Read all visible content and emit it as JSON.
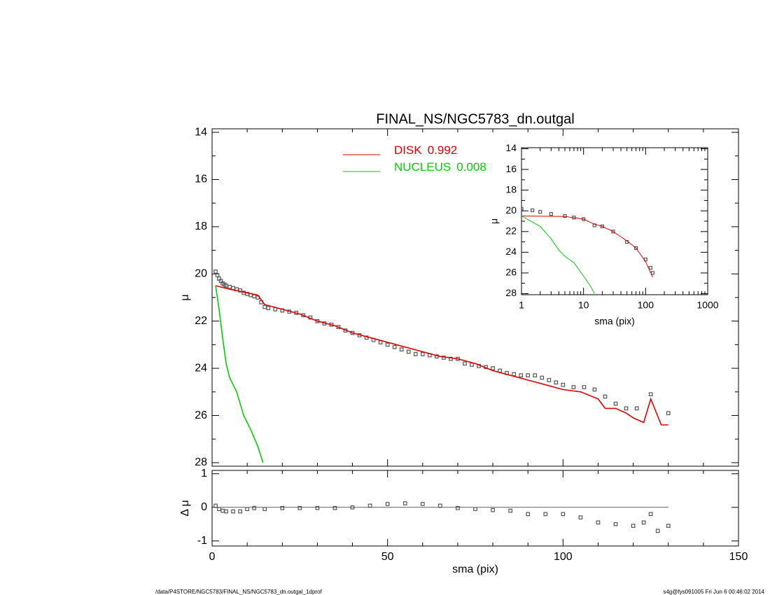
{
  "chart_data": [
    {
      "type": "line",
      "title": "FINAL_NS/NGC5783_dn.outgal",
      "ylabel": "μ",
      "xlim": [
        0,
        150
      ],
      "xticks": [
        0,
        50,
        100,
        150
      ],
      "xminor": 5,
      "xtick_labels": false,
      "ylim": [
        28.15,
        13.85
      ],
      "yticks": [
        14,
        16,
        18,
        20,
        22,
        24,
        26,
        28
      ],
      "yminor": 2,
      "series": [
        {
          "style": "points",
          "color": "#555555",
          "x": [
            1,
            1.5,
            2,
            2.5,
            3,
            3.5,
            4,
            5,
            6,
            7,
            8,
            9,
            10,
            11,
            12,
            13,
            14,
            15,
            16,
            18,
            20,
            22,
            24,
            26,
            28,
            30,
            32,
            34,
            36,
            38,
            40,
            42,
            44,
            46,
            48,
            50,
            52,
            54,
            56,
            58,
            60,
            62,
            64,
            66,
            68,
            70,
            72,
            74,
            76,
            78,
            80,
            82,
            84,
            86,
            88,
            90,
            92,
            94,
            96,
            98,
            100,
            103,
            106,
            109,
            112,
            115,
            118,
            121,
            125,
            130
          ],
          "values": [
            19.9,
            20.05,
            20.2,
            20.3,
            20.4,
            20.45,
            20.5,
            20.55,
            20.6,
            20.65,
            20.7,
            20.8,
            20.85,
            20.9,
            20.95,
            21.0,
            21.2,
            21.4,
            21.45,
            21.5,
            21.55,
            21.6,
            21.65,
            21.75,
            21.85,
            22.0,
            22.1,
            22.15,
            22.25,
            22.4,
            22.5,
            22.6,
            22.7,
            22.8,
            22.9,
            23.0,
            23.1,
            23.2,
            23.3,
            23.4,
            23.4,
            23.45,
            23.5,
            23.55,
            23.6,
            23.6,
            23.8,
            23.85,
            23.9,
            23.95,
            24.0,
            24.1,
            24.2,
            24.25,
            24.3,
            24.3,
            24.3,
            24.4,
            24.5,
            24.6,
            24.7,
            24.8,
            24.8,
            24.9,
            25.2,
            25.5,
            25.7,
            25.7,
            25.1,
            25.9
          ]
        },
        {
          "name": "DISK",
          "fraction": 0.992,
          "style": "line",
          "color": "#e00000",
          "x": [
            1,
            5,
            10,
            13,
            15,
            20,
            25,
            30,
            35,
            40,
            45,
            50,
            55,
            60,
            65,
            70,
            75,
            80,
            85,
            90,
            95,
            100,
            105,
            110,
            112,
            115,
            118,
            120,
            123,
            125,
            128,
            130
          ],
          "values": [
            20.5,
            20.65,
            20.8,
            20.9,
            21.3,
            21.5,
            21.7,
            22.0,
            22.2,
            22.5,
            22.7,
            22.9,
            23.1,
            23.3,
            23.5,
            23.6,
            23.8,
            24.1,
            24.3,
            24.5,
            24.7,
            24.9,
            25.0,
            25.3,
            25.7,
            25.7,
            25.9,
            26.1,
            26.3,
            25.3,
            26.4,
            26.4
          ]
        },
        {
          "name": "NUCLEUS",
          "fraction": 0.008,
          "style": "line",
          "color": "#00d000",
          "x": [
            1,
            2,
            3,
            4,
            5,
            7,
            8,
            9,
            11,
            13,
            14.5
          ],
          "values": [
            20.5,
            21.5,
            22.7,
            23.8,
            24.4,
            25.0,
            25.5,
            26.0,
            26.6,
            27.3,
            28.0
          ]
        }
      ]
    },
    {
      "type": "scatter",
      "xlabel": "sma (pix)",
      "ylabel": "Δ μ",
      "reference_y": 0,
      "xlim": [
        0,
        150
      ],
      "xticks": [
        0,
        50,
        100,
        150
      ],
      "xminor": 5,
      "ylim": [
        -1.15,
        1.1
      ],
      "yticks": [
        1,
        0,
        -1
      ],
      "yminor": 1,
      "series": [
        {
          "style": "points",
          "color": "#555555",
          "x": [
            1,
            2,
            3,
            4,
            6,
            8,
            10,
            12,
            15,
            20,
            25,
            30,
            35,
            40,
            45,
            50,
            55,
            60,
            65,
            70,
            75,
            80,
            85,
            90,
            95,
            100,
            105,
            110,
            115,
            120,
            123,
            125,
            127,
            130
          ],
          "values": [
            0.05,
            -0.05,
            -0.1,
            -0.12,
            -0.12,
            -0.12,
            -0.05,
            -0.02,
            -0.05,
            -0.02,
            -0.02,
            -0.02,
            -0.02,
            0.0,
            0.05,
            0.1,
            0.12,
            0.1,
            0.05,
            -0.02,
            -0.05,
            -0.08,
            -0.1,
            -0.2,
            -0.2,
            -0.2,
            -0.3,
            -0.45,
            -0.5,
            -0.55,
            -0.45,
            -0.2,
            -0.7,
            -0.55
          ]
        }
      ]
    },
    {
      "type": "line",
      "xlabel": "sma (pix)",
      "ylabel": "μ",
      "xlog": true,
      "xlim": [
        1,
        1000
      ],
      "xticks": [
        1,
        10,
        100,
        1000
      ],
      "ylim": [
        28.1,
        13.9
      ],
      "yticks": [
        14,
        16,
        18,
        20,
        22,
        24,
        26,
        28
      ],
      "yminor": 2,
      "series": [
        {
          "style": "points",
          "color": "#555555",
          "x": [
            1,
            1.5,
            2,
            3,
            5,
            7,
            10,
            15,
            20,
            30,
            50,
            70,
            100,
            120,
            130
          ],
          "values": [
            19.8,
            19.95,
            20.1,
            20.3,
            20.5,
            20.65,
            20.8,
            21.4,
            21.5,
            22.0,
            23.0,
            23.6,
            24.7,
            25.5,
            26.0
          ]
        },
        {
          "style": "line",
          "color": "#e00000",
          "x": [
            1,
            5,
            10,
            15,
            20,
            30,
            50,
            70,
            100,
            130
          ],
          "values": [
            20.5,
            20.55,
            20.8,
            21.3,
            21.5,
            22.0,
            22.9,
            23.6,
            24.9,
            26.4
          ]
        },
        {
          "style": "line",
          "color": "#00d000",
          "x": [
            1,
            2,
            3,
            4,
            5,
            7,
            8,
            10,
            13,
            15
          ],
          "values": [
            20.5,
            21.5,
            22.7,
            23.8,
            24.4,
            25.0,
            25.5,
            26.3,
            27.3,
            28.0
          ]
        }
      ]
    }
  ],
  "footer": {
    "left": "/data/P4STORE/NGC5783/FINAL_NS/NGC5783_dn.outgal_1dprof",
    "right": "s4g@fys091005  Fri Jun  6 00:46:02 2014"
  }
}
